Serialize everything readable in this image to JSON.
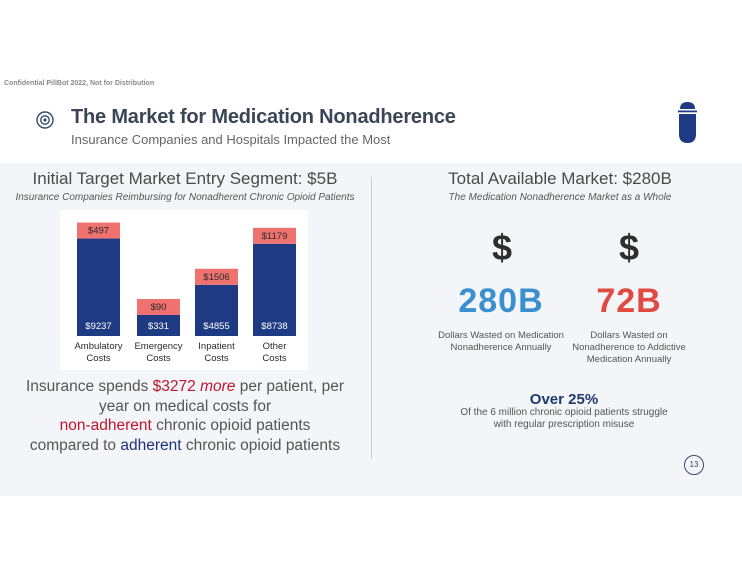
{
  "header": {
    "confidential": "Confidential PillBot 2022, Not for Distribution",
    "title": "The Market for Medication Nonadherence",
    "subtitle": "Insurance Companies and Hospitals Impacted the Most"
  },
  "left": {
    "heading": "Initial Target Market Entry Segment: $5B",
    "subheading": "Insurance Companies Reimbursing for Nonadherent Chronic Opioid Patients",
    "statement": {
      "line1_pre": "Insurance spends ",
      "amount": "$3272",
      "more": "more",
      "line1_post": " per patient, per",
      "line2": "year on medical costs for",
      "non_adherent": "non-adherent",
      "line3_post": " chronic opioid patients",
      "line4_pre": "compared to ",
      "adherent": "adherent",
      "line4_post": " chronic opioid patients"
    }
  },
  "right": {
    "heading": "Total Available Market: $280B",
    "subheading": "The Medication Nonadherence Market as a Whole",
    "stat1": {
      "symbol": "$",
      "value": "280B",
      "caption_line1": "Dollars Wasted on Medication",
      "caption_line2": "Nonadherence Annually"
    },
    "stat2": {
      "symbol": "$",
      "value": "72B",
      "caption_line1": "Dollars Wasted on",
      "caption_line2": "Nonadherence to Addictive",
      "caption_line3": "Medication Annually"
    },
    "highlight": "Over 25%",
    "highlight_line1": "Of the 6 million chronic opioid patients struggle",
    "highlight_line2": "with regular prescription misuse"
  },
  "page_number": "13",
  "colors": {
    "adherent_blue": "#1e3a82",
    "nonadherent_red": "#f07270",
    "stat_blue": "#3a8fd0",
    "stat_red": "#e04a40",
    "title_dark": "#3a4556"
  },
  "chart_data": {
    "type": "bar",
    "stacked": true,
    "categories": [
      [
        "Ambulatory",
        "Costs"
      ],
      [
        "Emergency",
        "Costs"
      ],
      [
        "Inpatient",
        "Costs"
      ],
      [
        "Other",
        "Costs"
      ]
    ],
    "series": [
      {
        "name": "adherent",
        "values": [
          9237,
          331,
          4855,
          8738
        ],
        "labels": [
          "$9237",
          "$331",
          "$4855",
          "$8738"
        ]
      },
      {
        "name": "non-adherent additional",
        "values": [
          497,
          90,
          1506,
          1179
        ],
        "labels": [
          "$497",
          "$90",
          "$1506",
          "$1179"
        ]
      }
    ]
  }
}
